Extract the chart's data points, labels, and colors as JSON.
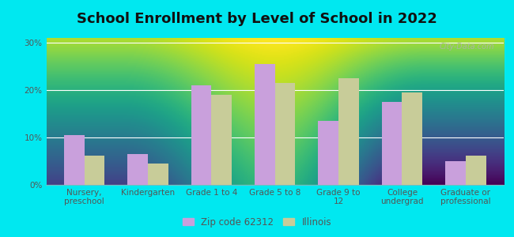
{
  "title": "School Enrollment by Level of School in 2022",
  "categories": [
    "Nursery,\npreschool",
    "Kindergarten",
    "Grade 1 to 4",
    "Grade 5 to 8",
    "Grade 9 to\n12",
    "College\nundergrad",
    "Graduate or\nprofessional"
  ],
  "zip_values": [
    10.5,
    6.5,
    21.0,
    25.5,
    13.5,
    17.5,
    5.0
  ],
  "il_values": [
    6.2,
    4.5,
    19.0,
    21.5,
    22.5,
    19.5,
    6.2
  ],
  "zip_color": "#c9a0dc",
  "il_color": "#c8cc99",
  "background_color": "#00e8f0",
  "plot_bg_top": "#f5faf5",
  "plot_bg_bottom": "#d8ecd0",
  "ylabel_ticks": [
    "0%",
    "10%",
    "20%",
    "30%"
  ],
  "ytick_vals": [
    0,
    10,
    20,
    30
  ],
  "ylim": [
    0,
    31
  ],
  "legend_zip_label": "Zip code 62312",
  "legend_il_label": "Illinois",
  "watermark": "City-Data.com",
  "title_fontsize": 13,
  "tick_fontsize": 7.5,
  "legend_fontsize": 8.5,
  "bar_width": 0.32
}
